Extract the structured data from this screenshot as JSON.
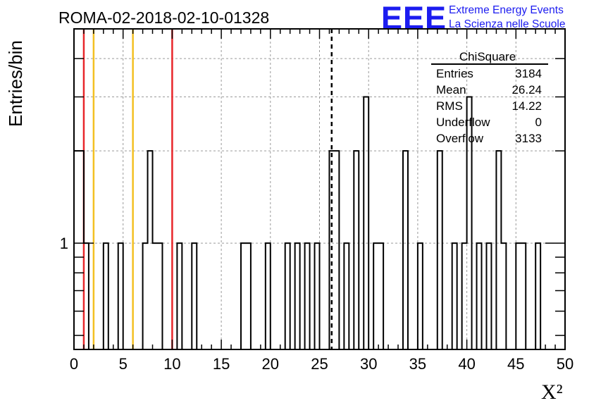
{
  "chart_data": {
    "type": "bar",
    "title": "ROMA-02-2018-02-10-01328",
    "xlabel": "X²",
    "ylabel": "Entries/bin",
    "y_scale": "log",
    "xlim": [
      0,
      50
    ],
    "ylim": [
      0.45,
      5
    ],
    "x_ticks": [
      "0",
      "5",
      "10",
      "15",
      "20",
      "25",
      "30",
      "35",
      "40",
      "45",
      "50"
    ],
    "y_tick_labels": [
      {
        "value": 1,
        "label": "1"
      }
    ],
    "grid": true,
    "bin_width": 0.5,
    "bins": [
      {
        "x": 0.0,
        "y": 2
      },
      {
        "x": 0.5,
        "y": 2
      },
      {
        "x": 1.0,
        "y": 1
      },
      {
        "x": 3.0,
        "y": 1
      },
      {
        "x": 4.5,
        "y": 1
      },
      {
        "x": 7.0,
        "y": 1
      },
      {
        "x": 7.5,
        "y": 2
      },
      {
        "x": 8.0,
        "y": 1
      },
      {
        "x": 8.5,
        "y": 1
      },
      {
        "x": 10.5,
        "y": 1
      },
      {
        "x": 12.0,
        "y": 1
      },
      {
        "x": 17.0,
        "y": 1
      },
      {
        "x": 17.5,
        "y": 1
      },
      {
        "x": 19.5,
        "y": 1
      },
      {
        "x": 21.5,
        "y": 1
      },
      {
        "x": 22.5,
        "y": 1
      },
      {
        "x": 23.5,
        "y": 1
      },
      {
        "x": 24.5,
        "y": 1
      },
      {
        "x": 26.0,
        "y": 2
      },
      {
        "x": 26.5,
        "y": 2
      },
      {
        "x": 27.5,
        "y": 1
      },
      {
        "x": 28.5,
        "y": 2
      },
      {
        "x": 29.5,
        "y": 3
      },
      {
        "x": 30.5,
        "y": 1
      },
      {
        "x": 31.0,
        "y": 1
      },
      {
        "x": 33.5,
        "y": 2
      },
      {
        "x": 35.0,
        "y": 1
      },
      {
        "x": 37.0,
        "y": 2
      },
      {
        "x": 38.5,
        "y": 1
      },
      {
        "x": 39.5,
        "y": 1
      },
      {
        "x": 40.0,
        "y": 3
      },
      {
        "x": 41.0,
        "y": 1
      },
      {
        "x": 42.0,
        "y": 1
      },
      {
        "x": 43.0,
        "y": 2
      },
      {
        "x": 43.5,
        "y": 1
      },
      {
        "x": 45.0,
        "y": 1
      },
      {
        "x": 45.5,
        "y": 1
      },
      {
        "x": 47.0,
        "y": 1
      }
    ],
    "reference_lines": [
      {
        "x": 1,
        "color": "#e8262a",
        "style": "solid"
      },
      {
        "x": 2,
        "color": "#f3c021",
        "style": "solid"
      },
      {
        "x": 6,
        "color": "#f3c021",
        "style": "solid"
      },
      {
        "x": 10,
        "color": "#e8262a",
        "style": "solid"
      },
      {
        "x": 26.24,
        "color": "#000000",
        "style": "dashed"
      }
    ],
    "stats_box": {
      "title": "ChiSquare",
      "rows": [
        {
          "label": "Entries",
          "value": "3184"
        },
        {
          "label": "Mean",
          "value": "26.24"
        },
        {
          "label": "RMS",
          "value": "14.22"
        },
        {
          "label": "Underflow",
          "value": "0"
        },
        {
          "label": "Overflow",
          "value": "3133"
        }
      ]
    }
  },
  "logo": {
    "text": "EEE",
    "line1": "Extreme Energy Events",
    "line2": "La Scienza nelle Scuole",
    "color": "#1c1cf0"
  }
}
